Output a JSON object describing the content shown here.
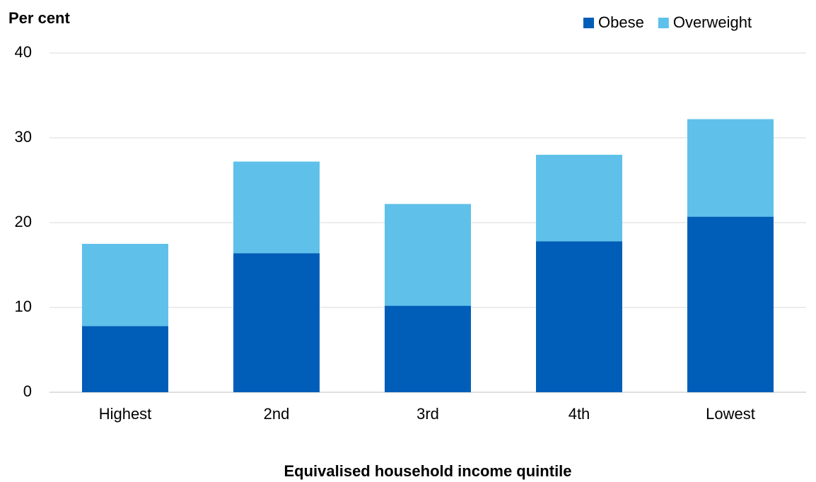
{
  "chart_data": {
    "type": "stacked_bar",
    "y_label": "Per cent",
    "x_label": "Equivalised household income quintile",
    "categories": [
      "Highest",
      "2nd",
      "3rd",
      "4th",
      "Lowest"
    ],
    "series": [
      {
        "name": "Obese",
        "color": "#005eb8",
        "values": [
          7.8,
          16.4,
          10.2,
          17.8,
          20.7
        ]
      },
      {
        "name": "Overweight",
        "color": "#5fc1ea",
        "values": [
          9.7,
          10.8,
          12.0,
          10.2,
          11.5
        ]
      }
    ],
    "ylim": [
      0,
      40
    ],
    "yticks": [
      0,
      10,
      20,
      30,
      40
    ],
    "grid": true,
    "legend_position": "top-right"
  }
}
